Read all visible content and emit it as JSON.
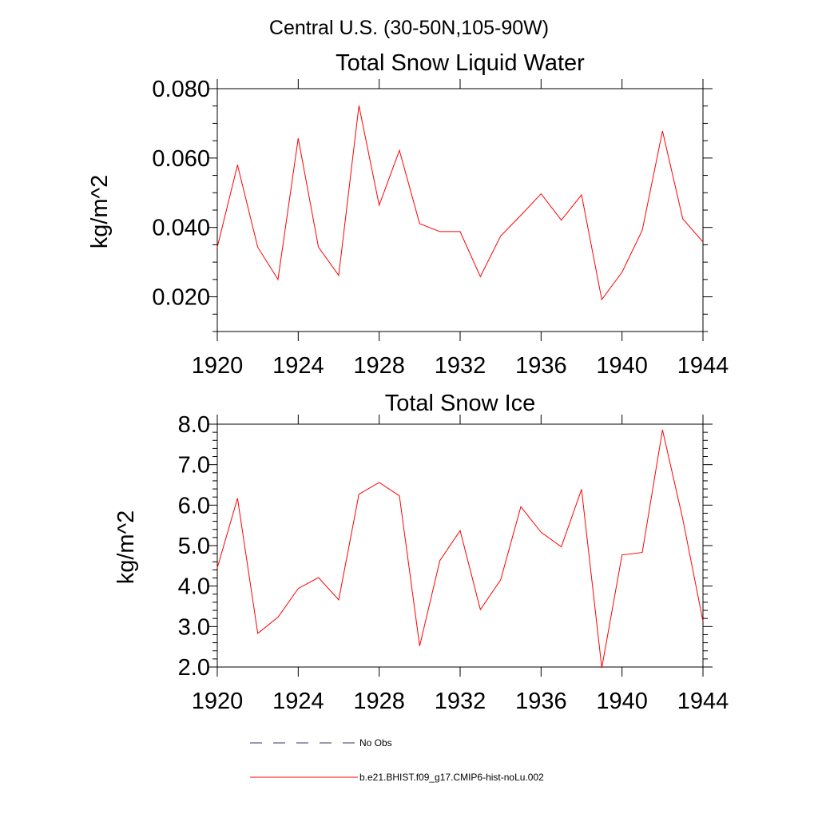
{
  "figure": {
    "suptitle": "Central U.S. (30-50N,105-90W)"
  },
  "chart_data": [
    {
      "type": "line",
      "title": "Total Snow Liquid Water",
      "ylabel": "kg/m^2",
      "xlabel": "",
      "xlim": [
        1920,
        1944
      ],
      "ylim": [
        0.01,
        0.08
      ],
      "xticks": [
        1920,
        1924,
        1928,
        1932,
        1936,
        1940,
        1944
      ],
      "xtick_labels": [
        "1920",
        "1924",
        "1928",
        "1932",
        "1936",
        "1940",
        "1944"
      ],
      "yticks": [
        0.02,
        0.04,
        0.06,
        0.08
      ],
      "ytick_labels": [
        "0.020",
        "0.040",
        "0.060",
        "0.080"
      ],
      "grid": false,
      "x": [
        1920,
        1921,
        1922,
        1923,
        1924,
        1925,
        1926,
        1927,
        1928,
        1929,
        1930,
        1931,
        1932,
        1933,
        1934,
        1935,
        1936,
        1937,
        1938,
        1939,
        1940,
        1941,
        1942,
        1943,
        1944
      ],
      "series": [
        {
          "name": "b.e21.BHIST.f09_g17.CMIP6-hist-noLu.002",
          "color": "#ff0000",
          "values": [
            0.0343,
            0.058,
            0.0343,
            0.025,
            0.0657,
            0.0343,
            0.0262,
            0.0751,
            0.0464,
            0.0622,
            0.0411,
            0.0388,
            0.0388,
            0.0258,
            0.0375,
            0.0435,
            0.0497,
            0.0421,
            0.0494,
            0.0192,
            0.0271,
            0.0392,
            0.0678,
            0.0425,
            0.0358
          ]
        }
      ]
    },
    {
      "type": "line",
      "title": "Total Snow Ice",
      "ylabel": "kg/m^2",
      "xlabel": "",
      "xlim": [
        1920,
        1944
      ],
      "ylim": [
        2.0,
        8.0
      ],
      "xticks": [
        1920,
        1924,
        1928,
        1932,
        1936,
        1940,
        1944
      ],
      "xtick_labels": [
        "1920",
        "1924",
        "1928",
        "1932",
        "1936",
        "1940",
        "1944"
      ],
      "yticks": [
        2.0,
        3.0,
        4.0,
        5.0,
        6.0,
        7.0,
        8.0
      ],
      "ytick_labels": [
        "2.0",
        "3.0",
        "4.0",
        "5.0",
        "6.0",
        "7.0",
        "8.0"
      ],
      "grid": false,
      "x": [
        1920,
        1921,
        1922,
        1923,
        1924,
        1925,
        1926,
        1927,
        1928,
        1929,
        1930,
        1931,
        1932,
        1933,
        1934,
        1935,
        1936,
        1937,
        1938,
        1939,
        1940,
        1941,
        1942,
        1943,
        1944
      ],
      "series": [
        {
          "name": "b.e21.BHIST.f09_g17.CMIP6-hist-noLu.002",
          "color": "#ff0000",
          "values": [
            4.45,
            6.17,
            2.83,
            3.23,
            3.94,
            4.21,
            3.66,
            6.27,
            6.56,
            6.23,
            2.52,
            4.63,
            5.37,
            3.42,
            4.15,
            5.96,
            5.33,
            4.97,
            6.39,
            1.98,
            4.77,
            4.83,
            7.86,
            5.66,
            3.13
          ]
        }
      ]
    }
  ],
  "legend": {
    "placement": "bottom",
    "entries": [
      {
        "label": "No Obs",
        "style": "dashed",
        "color": "#33336b"
      },
      {
        "label": "b.e21.BHIST.f09_g17.CMIP6-hist-noLu.002",
        "style": "solid",
        "color": "#ff0000"
      }
    ]
  }
}
